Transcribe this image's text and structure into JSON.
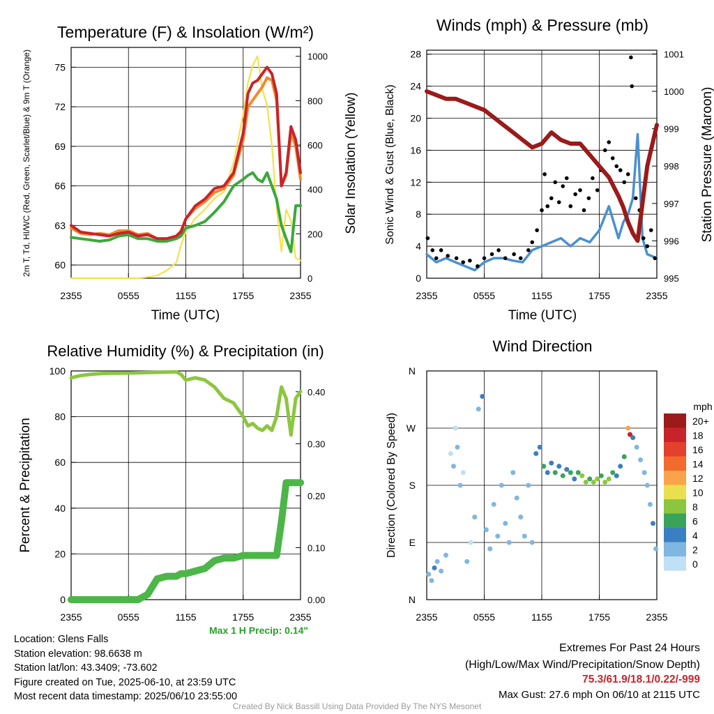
{
  "chart_data": [
    {
      "id": "temp",
      "type": "line",
      "title": "Temperature (F) & Insolation (W/m²)",
      "xlabel": "Time (UTC)",
      "ylabel": "2m T, Td, HI/WC (Red, Green, Scarlet/Blue) & 9m T (Orange)",
      "y2label": "Solar Insolation (Yellow)",
      "x_ticks": [
        "2355",
        "0555",
        "1155",
        "1755",
        "2355"
      ],
      "y_ticks": [
        "60",
        "63",
        "66",
        "69",
        "72",
        "75"
      ],
      "y2_ticks": [
        "0",
        "200",
        "400",
        "600",
        "800",
        "1000"
      ],
      "ylim": [
        59,
        76.5
      ],
      "y2lim": [
        0,
        1040
      ],
      "x_hours": [
        0,
        1,
        2,
        3,
        4,
        5,
        6,
        7,
        8,
        9,
        10,
        11,
        11.5,
        12,
        13,
        14,
        15,
        16,
        17,
        18,
        18.5,
        19,
        19.5,
        20,
        20.5,
        21,
        21.5,
        22,
        22.5,
        23,
        23.5,
        24
      ],
      "series": [
        {
          "key": "temp_2m",
          "color": "#c8232b",
          "values": [
            63.0,
            62.5,
            62.4,
            62.3,
            62.2,
            62.4,
            62.5,
            62.2,
            62.3,
            62.0,
            62.0,
            62.2,
            62.5,
            63.5,
            64.5,
            65.0,
            65.8,
            66.0,
            67.0,
            70.0,
            73.0,
            73.8,
            74.0,
            74.5,
            75.0,
            74.5,
            73.0,
            66.0,
            67.0,
            70.5,
            69.5,
            67.0
          ]
        },
        {
          "key": "temp_9m",
          "color": "#f18a2b",
          "values": [
            62.8,
            62.4,
            62.3,
            62.4,
            62.3,
            62.6,
            62.6,
            62.3,
            62.4,
            62.0,
            62.0,
            62.2,
            62.6,
            63.5,
            64.3,
            64.8,
            65.5,
            65.8,
            66.8,
            69.5,
            72.0,
            72.5,
            73.0,
            73.5,
            74.2,
            74.0,
            72.5,
            66.0,
            66.8,
            70.0,
            69.0,
            66.5
          ]
        },
        {
          "key": "dewpoint",
          "color": "#3aa83a",
          "values": [
            62.1,
            62.0,
            61.9,
            61.8,
            61.9,
            62.2,
            62.3,
            62.0,
            62.0,
            61.8,
            61.8,
            62.0,
            62.2,
            62.8,
            63.0,
            63.3,
            64.0,
            64.8,
            66.0,
            66.5,
            66.8,
            67.0,
            66.5,
            66.3,
            67.0,
            66.0,
            65.0,
            63.0,
            62.0,
            61.0,
            64.5,
            64.5
          ]
        },
        {
          "key": "insolation",
          "color": "#f7e04a",
          "axis": "y2",
          "values": [
            0,
            0,
            0,
            0,
            0,
            0,
            0,
            0,
            5,
            12,
            35,
            70,
            150,
            210,
            270,
            310,
            360,
            390,
            520,
            740,
            880,
            960,
            1000,
            850,
            780,
            600,
            320,
            120,
            310,
            260,
            90,
            80
          ]
        }
      ]
    },
    {
      "id": "wind",
      "type": "line",
      "title": "Winds (mph) & Pressure (mb)",
      "xlabel": "Time (UTC)",
      "ylabel": "Sonic Wind & Gust (Blue, Black)",
      "y2label": "Station Pressure (Maroon)",
      "x_ticks": [
        "2355",
        "0555",
        "1155",
        "1755",
        "2355"
      ],
      "y_ticks": [
        "0",
        "4",
        "8",
        "12",
        "16",
        "20",
        "24",
        "28"
      ],
      "y2_ticks": [
        "995",
        "996",
        "997",
        "998",
        "999",
        "1000",
        "1001"
      ],
      "ylim": [
        0,
        28.5
      ],
      "y2lim": [
        995,
        1001.1
      ],
      "x_hours": [
        0,
        1,
        2,
        3,
        4,
        5,
        6,
        7,
        8,
        9,
        10,
        11,
        12,
        13,
        14,
        15,
        16,
        17,
        18,
        19,
        20,
        20.5,
        21,
        21.5,
        22,
        22.5,
        23,
        24
      ],
      "series": [
        {
          "key": "pressure",
          "color": "#9b1a1a",
          "axis": "y2",
          "values": [
            1000.0,
            999.9,
            999.8,
            999.8,
            999.7,
            999.6,
            999.5,
            999.3,
            999.1,
            998.9,
            998.7,
            998.5,
            998.6,
            998.9,
            998.7,
            998.6,
            998.6,
            998.3,
            998.0,
            997.7,
            997.2,
            996.9,
            996.5,
            996.2,
            996.0,
            997.0,
            998.0,
            999.1
          ]
        },
        {
          "key": "wind_speed",
          "color": "#4a90cf",
          "values": [
            3,
            2,
            2.5,
            2,
            1.5,
            1,
            2,
            2.5,
            2.5,
            2.2,
            2,
            3.5,
            4,
            4.5,
            5,
            4,
            5,
            4.5,
            6,
            9,
            5,
            7,
            8,
            10,
            18,
            5,
            3,
            2.5
          ]
        }
      ],
      "gust_points": [
        [
          0.1,
          5
        ],
        [
          0.6,
          3.5
        ],
        [
          1.0,
          2.5
        ],
        [
          1.5,
          3.5
        ],
        [
          2.2,
          2.8
        ],
        [
          3.1,
          2.5
        ],
        [
          3.8,
          2.0
        ],
        [
          4.5,
          2.2
        ],
        [
          5.3,
          1.5
        ],
        [
          6.0,
          2.5
        ],
        [
          6.8,
          3.0
        ],
        [
          7.5,
          3.5
        ],
        [
          8.2,
          2.5
        ],
        [
          9.1,
          3.0
        ],
        [
          9.8,
          2.5
        ],
        [
          10.6,
          3.5
        ],
        [
          11.0,
          4.5
        ],
        [
          11.5,
          6.0
        ],
        [
          12.0,
          8.5
        ],
        [
          12.3,
          13.0
        ],
        [
          12.6,
          9.0
        ],
        [
          13.0,
          10.0
        ],
        [
          13.4,
          12.0
        ],
        [
          13.8,
          9.5
        ],
        [
          14.2,
          11.5
        ],
        [
          14.6,
          12.5
        ],
        [
          15.0,
          9.0
        ],
        [
          15.5,
          10.5
        ],
        [
          16.0,
          11.0
        ],
        [
          16.4,
          8.5
        ],
        [
          16.9,
          10.0
        ],
        [
          17.3,
          12.5
        ],
        [
          17.8,
          11.0
        ],
        [
          18.2,
          13.5
        ],
        [
          18.6,
          16.0
        ],
        [
          19.0,
          17.0
        ],
        [
          19.4,
          15.0
        ],
        [
          19.8,
          14.0
        ],
        [
          20.2,
          13.5
        ],
        [
          20.6,
          12.0
        ],
        [
          21.0,
          13.0
        ],
        [
          21.3,
          27.6
        ],
        [
          21.4,
          24.0
        ],
        [
          21.8,
          10.0
        ],
        [
          22.2,
          8.5
        ],
        [
          22.6,
          5.0
        ],
        [
          23.0,
          4.0
        ],
        [
          23.4,
          6.0
        ],
        [
          23.8,
          2.5
        ]
      ]
    },
    {
      "id": "rh",
      "type": "line",
      "title": "Relative Humidity (%) & Precipitation (in)",
      "ylabel": "Percent & Precipitation",
      "x_ticks": [
        "2355",
        "0555",
        "1155",
        "1755",
        "2355"
      ],
      "y_ticks": [
        "0",
        "20",
        "40",
        "60",
        "80",
        "100"
      ],
      "y2_ticks": [
        "0.00",
        "0.10",
        "0.20",
        "0.30",
        "0.40"
      ],
      "ylim": [
        0,
        100
      ],
      "y2lim": [
        0,
        0.44
      ],
      "x_hours": [
        0,
        1,
        2,
        3,
        4,
        5,
        6,
        7,
        8,
        9,
        10,
        11,
        11.5,
        12,
        13,
        14,
        15,
        16,
        17,
        18,
        18.5,
        19,
        19.5,
        20,
        20.5,
        21,
        21.5,
        22,
        22.5,
        23,
        23.5,
        24
      ],
      "series": [
        {
          "key": "rh",
          "color": "#8cc63f",
          "values": [
            97,
            98,
            98.5,
            98.8,
            99,
            99,
            99.1,
            99.2,
            99.3,
            99.4,
            99.5,
            99.6,
            98.5,
            96,
            97,
            96,
            93,
            88,
            86,
            80,
            76,
            77,
            75,
            74,
            76,
            74,
            80,
            93,
            88,
            72,
            88,
            91
          ]
        },
        {
          "key": "precip",
          "color": "#4cb648",
          "axis": "y2",
          "values": [
            0,
            0,
            0,
            0,
            0,
            0,
            0,
            0,
            0.01,
            0.04,
            0.045,
            0.045,
            0.05,
            0.05,
            0.055,
            0.06,
            0.075,
            0.08,
            0.08,
            0.085,
            0.085,
            0.085,
            0.085,
            0.085,
            0.085,
            0.085,
            0.085,
            0.15,
            0.225,
            0.225,
            0.225,
            0.225
          ]
        }
      ],
      "annotation": "Max 1 H Precip: 0.14\""
    },
    {
      "id": "dir",
      "type": "scatter",
      "title": "Wind Direction",
      "ylabel": "Direction (Colored By Speed)",
      "x_ticks": [
        "2355",
        "0555",
        "1155",
        "1755",
        "2355"
      ],
      "y_ticks": [
        "N",
        "E",
        "S",
        "W",
        "N"
      ],
      "ylim": [
        0,
        360
      ],
      "legend_title": "mph",
      "legend_labels": [
        "20+",
        "18",
        "16",
        "14",
        "12",
        "10",
        "8",
        "6",
        "4",
        "2",
        "0"
      ],
      "legend_colors": [
        "#9b1a1a",
        "#c8232b",
        "#e3402e",
        "#f26a2e",
        "#f9a44a",
        "#e8e050",
        "#8cc63f",
        "#3aa35a",
        "#3a7fc1",
        "#7fb6e2",
        "#bfe0f5"
      ],
      "points": [
        [
          0.2,
          40,
          2
        ],
        [
          0.5,
          30,
          2
        ],
        [
          0.8,
          50,
          4
        ],
        [
          1.1,
          60,
          2
        ],
        [
          1.5,
          45,
          2
        ],
        [
          2.0,
          70,
          2
        ],
        [
          2.5,
          230,
          0
        ],
        [
          2.8,
          210,
          2
        ],
        [
          3.0,
          270,
          0
        ],
        [
          3.2,
          240,
          2
        ],
        [
          3.5,
          180,
          2
        ],
        [
          3.8,
          200,
          0
        ],
        [
          4.2,
          60,
          2
        ],
        [
          4.6,
          90,
          0
        ],
        [
          5.0,
          130,
          2
        ],
        [
          5.4,
          300,
          2
        ],
        [
          5.8,
          320,
          4
        ],
        [
          6.2,
          110,
          2
        ],
        [
          6.6,
          80,
          2
        ],
        [
          7.0,
          150,
          2
        ],
        [
          7.4,
          100,
          2
        ],
        [
          7.8,
          180,
          2
        ],
        [
          8.2,
          120,
          2
        ],
        [
          8.6,
          90,
          2
        ],
        [
          9.0,
          200,
          2
        ],
        [
          9.4,
          160,
          2
        ],
        [
          9.8,
          130,
          2
        ],
        [
          10.2,
          100,
          2
        ],
        [
          10.6,
          180,
          2
        ],
        [
          11.0,
          90,
          2
        ],
        [
          11.4,
          230,
          4
        ],
        [
          11.8,
          240,
          4
        ],
        [
          12.2,
          210,
          6
        ],
        [
          12.6,
          200,
          4
        ],
        [
          13.0,
          215,
          4
        ],
        [
          13.4,
          200,
          6
        ],
        [
          13.8,
          210,
          4
        ],
        [
          14.2,
          195,
          6
        ],
        [
          14.6,
          205,
          4
        ],
        [
          15.0,
          200,
          6
        ],
        [
          15.4,
          190,
          4
        ],
        [
          15.8,
          200,
          6
        ],
        [
          16.2,
          195,
          8
        ],
        [
          16.6,
          185,
          8
        ],
        [
          17.0,
          190,
          6
        ],
        [
          17.4,
          185,
          8
        ],
        [
          17.8,
          190,
          8
        ],
        [
          18.2,
          195,
          6
        ],
        [
          18.6,
          185,
          8
        ],
        [
          19.0,
          190,
          8
        ],
        [
          19.4,
          200,
          6
        ],
        [
          19.8,
          195,
          4
        ],
        [
          20.2,
          210,
          4
        ],
        [
          20.6,
          225,
          6
        ],
        [
          21.0,
          270,
          12
        ],
        [
          21.2,
          260,
          18
        ],
        [
          21.5,
          255,
          4
        ],
        [
          21.9,
          240,
          2
        ],
        [
          22.3,
          220,
          2
        ],
        [
          22.7,
          200,
          2
        ],
        [
          23.0,
          180,
          2
        ],
        [
          23.3,
          150,
          2
        ],
        [
          23.6,
          120,
          4
        ],
        [
          23.9,
          80,
          2
        ]
      ]
    }
  ],
  "figure_info": {
    "location": "Location: Glens Falls",
    "elevation": "Station elevation: 98.6638 m",
    "latlon": "Station lat/lon: 43.3409; -73.602",
    "created": "Figure created on Tue, 2025-06-10, at 23:59 UTC",
    "recent": "Most recent data timestamp: 2025/06/10 23:55:00"
  },
  "extremes": {
    "line1": "Extremes For Past 24 Hours",
    "line2": "(High/Low/Max Wind/Precipitation/Snow Depth)",
    "values": "75.3/61.9/18.1/0.22/-999",
    "max_gust": "Max Gust: 27.6 mph On 06/10 at 2115 UTC"
  },
  "credit": "Created By Nick Bassill Using Data Provided By The NYS Mesonet",
  "colors": {
    "temp": "#c8232b",
    "temp9m": "#f18a2b",
    "dewpoint": "#3aa83a",
    "insolation": "#f7e04a",
    "pressure": "#9b1a1a",
    "wind": "#4a90cf",
    "gust": "#000000",
    "rh": "#8cc63f",
    "precip": "#4cb648"
  }
}
